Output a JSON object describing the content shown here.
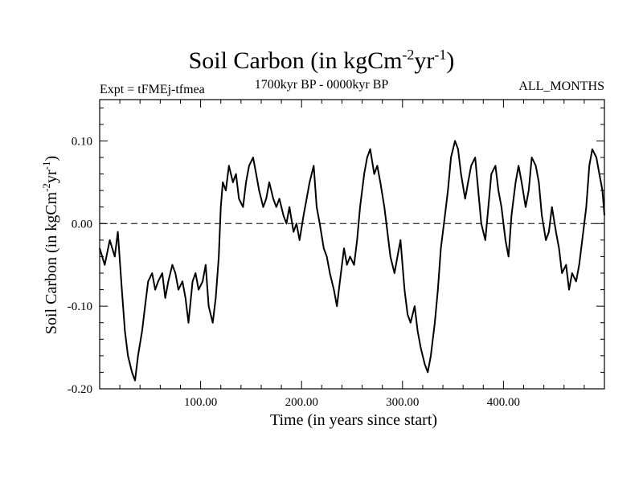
{
  "chart_data": {
    "type": "line",
    "title": {
      "base": "Soil Carbon (in kgCm",
      "exp1": "-2",
      "mid": "yr",
      "exp2": "-1",
      "end": ")"
    },
    "subtitle_left": "Expt = tFMEj-tfmea",
    "subtitle_center": "1700kyr BP - 0000kyr BP",
    "subtitle_right": "ALL_MONTHS",
    "xlabel": "Time (in years since start)",
    "ylabel": {
      "base": "Soil Carbon (in kgCm",
      "exp1": "-2",
      "mid": "yr",
      "exp2": "-1",
      "end": ")"
    },
    "xlim": [
      0,
      500
    ],
    "ylim": [
      -0.2,
      0.15
    ],
    "x_ticks": [
      {
        "value": 100,
        "label": "100.00"
      },
      {
        "value": 200,
        "label": "200.00"
      },
      {
        "value": 300,
        "label": "300.00"
      },
      {
        "value": 400,
        "label": "400.00"
      }
    ],
    "y_ticks": [
      {
        "value": 0.1,
        "label": "0.10"
      },
      {
        "value": 0.0,
        "label": "0.00"
      },
      {
        "value": -0.1,
        "label": "-0.10"
      },
      {
        "value": -0.2,
        "label": "-0.20"
      }
    ],
    "reference_line": {
      "value": 0.0,
      "style": "dashed"
    },
    "series": [
      {
        "name": "Soil Carbon",
        "x": [
          0,
          5,
          10,
          15,
          18,
          22,
          25,
          28,
          32,
          35,
          38,
          42,
          45,
          48,
          52,
          55,
          58,
          62,
          65,
          68,
          72,
          75,
          78,
          82,
          85,
          88,
          92,
          95,
          98,
          102,
          105,
          108,
          112,
          115,
          118,
          120,
          122,
          125,
          128,
          132,
          135,
          138,
          142,
          145,
          148,
          152,
          155,
          158,
          162,
          165,
          168,
          172,
          175,
          178,
          182,
          185,
          188,
          192,
          195,
          198,
          202,
          205,
          208,
          212,
          215,
          218,
          222,
          225,
          228,
          232,
          235,
          238,
          242,
          245,
          248,
          252,
          255,
          258,
          262,
          265,
          268,
          272,
          275,
          278,
          282,
          285,
          288,
          292,
          295,
          298,
          302,
          305,
          308,
          312,
          315,
          318,
          322,
          325,
          328,
          332,
          335,
          338,
          342,
          345,
          348,
          352,
          355,
          358,
          362,
          365,
          368,
          372,
          375,
          378,
          382,
          385,
          388,
          392,
          395,
          398,
          402,
          405,
          408,
          412,
          415,
          418,
          422,
          425,
          428,
          432,
          435,
          438,
          442,
          445,
          448,
          452,
          455,
          458,
          462,
          465,
          468,
          472,
          475,
          478,
          482,
          485,
          488,
          492,
          495,
          498,
          500
        ],
        "values": [
          -0.03,
          -0.05,
          -0.02,
          -0.04,
          -0.01,
          -0.08,
          -0.13,
          -0.16,
          -0.18,
          -0.19,
          -0.16,
          -0.13,
          -0.1,
          -0.07,
          -0.06,
          -0.08,
          -0.07,
          -0.06,
          -0.09,
          -0.07,
          -0.05,
          -0.06,
          -0.08,
          -0.07,
          -0.09,
          -0.12,
          -0.07,
          -0.06,
          -0.08,
          -0.07,
          -0.05,
          -0.1,
          -0.12,
          -0.09,
          -0.04,
          0.02,
          0.05,
          0.04,
          0.07,
          0.05,
          0.06,
          0.03,
          0.02,
          0.05,
          0.07,
          0.08,
          0.06,
          0.04,
          0.02,
          0.03,
          0.05,
          0.03,
          0.02,
          0.03,
          0.01,
          0.0,
          0.02,
          -0.01,
          0.0,
          -0.02,
          0.01,
          0.03,
          0.05,
          0.07,
          0.02,
          0.0,
          -0.03,
          -0.04,
          -0.06,
          -0.08,
          -0.1,
          -0.07,
          -0.03,
          -0.05,
          -0.04,
          -0.05,
          -0.02,
          0.02,
          0.06,
          0.08,
          0.09,
          0.06,
          0.07,
          0.05,
          0.02,
          -0.01,
          -0.04,
          -0.06,
          -0.04,
          -0.02,
          -0.08,
          -0.11,
          -0.12,
          -0.1,
          -0.13,
          -0.15,
          -0.17,
          -0.18,
          -0.16,
          -0.12,
          -0.08,
          -0.03,
          0.01,
          0.04,
          0.08,
          0.1,
          0.09,
          0.06,
          0.03,
          0.05,
          0.07,
          0.08,
          0.04,
          0.0,
          -0.02,
          0.02,
          0.06,
          0.07,
          0.04,
          0.02,
          -0.02,
          -0.04,
          0.01,
          0.05,
          0.07,
          0.05,
          0.02,
          0.04,
          0.08,
          0.07,
          0.05,
          0.01,
          -0.02,
          -0.01,
          0.02,
          -0.01,
          -0.03,
          -0.06,
          -0.05,
          -0.08,
          -0.06,
          -0.07,
          -0.05,
          -0.02,
          0.02,
          0.07,
          0.09,
          0.08,
          0.06,
          0.04,
          0.01
        ]
      }
    ]
  }
}
